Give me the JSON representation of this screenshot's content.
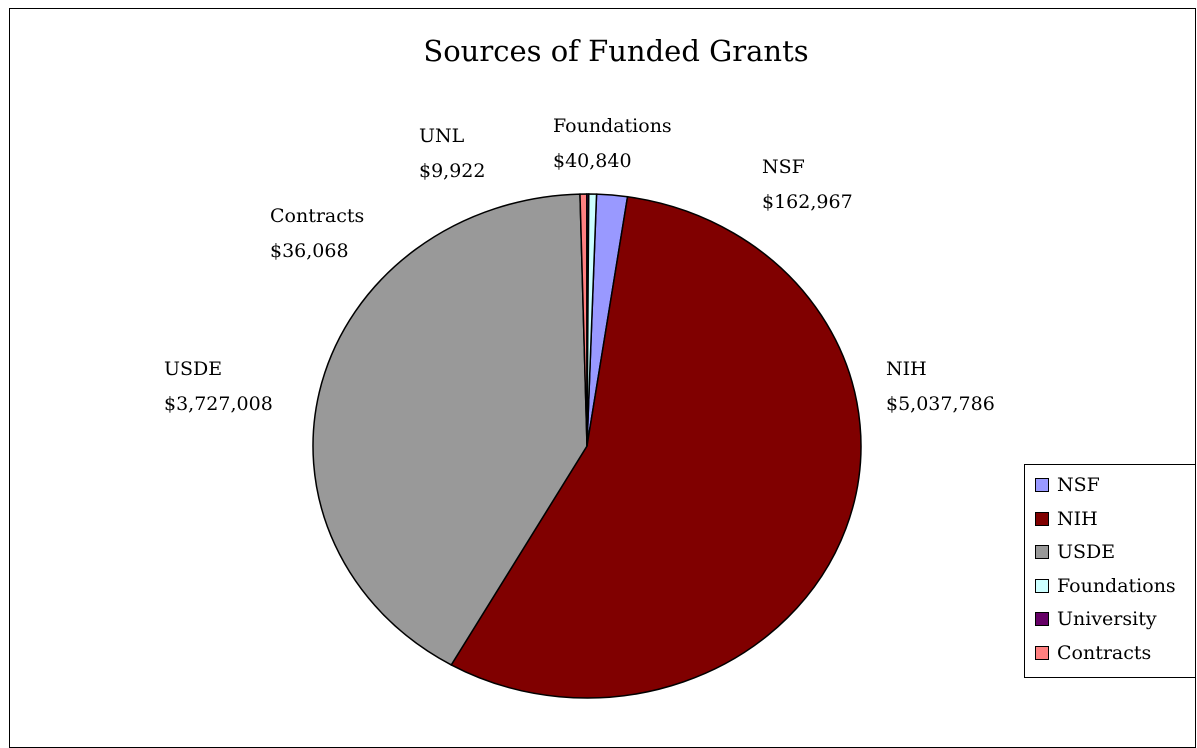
{
  "chart_data": {
    "type": "pie",
    "title": "Sources of Funded Grants",
    "slices": [
      {
        "name": "NSF",
        "value": 162967,
        "color": "#9999ff",
        "label_name": "NSF",
        "label_value": "$162,967"
      },
      {
        "name": "NIH",
        "value": 5037786,
        "color": "#800000",
        "label_name": "NIH",
        "label_value": "$5,037,786"
      },
      {
        "name": "USDE",
        "value": 3727008,
        "color": "#999999",
        "label_name": "USDE",
        "label_value": "$3,727,008"
      },
      {
        "name": "Contracts",
        "value": 36068,
        "color": "#ff8080",
        "label_name": "Contracts",
        "label_value": "$36,068"
      },
      {
        "name": "University",
        "value": 9922,
        "color": "#660066",
        "label_name": "UNL",
        "label_value": "$9,922"
      },
      {
        "name": "Foundations",
        "value": 40840,
        "color": "#ccffff",
        "label_name": "Foundations",
        "label_value": "$40,840"
      }
    ],
    "legend": {
      "position": "right",
      "entries": [
        {
          "name": "NSF",
          "color": "#9999ff"
        },
        {
          "name": "NIH",
          "color": "#800000"
        },
        {
          "name": "USDE",
          "color": "#999999"
        },
        {
          "name": "Foundations",
          "color": "#ccffff"
        },
        {
          "name": "University",
          "color": "#660066"
        },
        {
          "name": "Contracts",
          "color": "#ff8080"
        }
      ]
    }
  }
}
